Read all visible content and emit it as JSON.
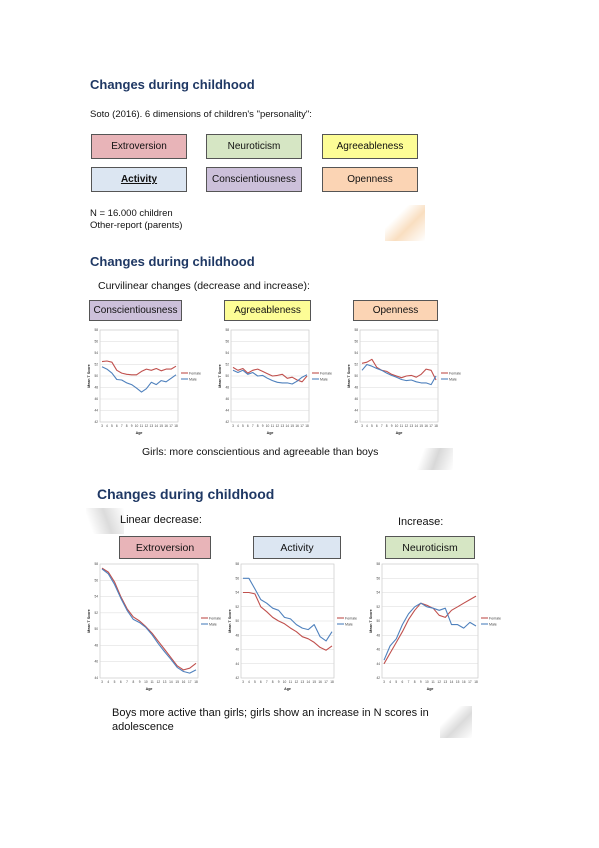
{
  "slide1": {
    "title": "Changes during childhood",
    "intro": "Soto (2016).  6 dimensions of children's \"personality\":",
    "dimensions": [
      {
        "label": "Extroversion",
        "color": "#e8b4b8"
      },
      {
        "label": "Neuroticism",
        "color": "#d6e6c4"
      },
      {
        "label": "Agreeableness",
        "color": "#fdfd96"
      },
      {
        "label": "Activity",
        "color": "#dce6f2"
      },
      {
        "label": "Conscientiousness",
        "color": "#ccc0da"
      },
      {
        "label": "Openness",
        "color": "#fbd4b4"
      }
    ],
    "note1": "N = 16.000 children",
    "note2": "Other-report (parents)"
  },
  "slide2": {
    "title": "Changes during childhood",
    "subtitle": "Curvilinear changes (decrease and increase):",
    "footer": "Girls: more conscientious and agreeable than boys"
  },
  "slide3": {
    "title": "Changes during childhood",
    "left_label": "Linear decrease:",
    "right_label": "Increase:",
    "footer1": "Boys more active than girls; girls show an increase in N scores in",
    "footer2": "adolescence"
  },
  "chart_data": [
    {
      "type": "line",
      "title": "Conscientiousness",
      "xlabel": "Age",
      "ylabel": "Mean T Score",
      "x": [
        3,
        4,
        5,
        6,
        7,
        8,
        9,
        10,
        11,
        12,
        13,
        14,
        15,
        16,
        17,
        18
      ],
      "yticks": [
        42,
        44,
        46,
        48,
        50,
        52,
        54,
        56,
        58
      ],
      "ylim": [
        42,
        58
      ],
      "series": [
        {
          "name": "Female",
          "color": "#c0504d",
          "values": [
            52.5,
            52.6,
            52.4,
            51.0,
            50.5,
            50.3,
            50.2,
            50.2,
            50.8,
            51.2,
            51.0,
            51.3,
            50.9,
            51.2,
            51.2,
            51.7
          ]
        },
        {
          "name": "Male",
          "color": "#4f81bd",
          "values": [
            51.6,
            51.2,
            50.5,
            49.4,
            49.3,
            48.8,
            48.5,
            47.9,
            47.2,
            47.8,
            48.9,
            48.5,
            49.2,
            49.0,
            49.6,
            50.2
          ]
        }
      ]
    },
    {
      "type": "line",
      "title": "Agreeableness",
      "xlabel": "Age",
      "ylabel": "Mean T Score",
      "x": [
        3,
        4,
        5,
        6,
        7,
        8,
        9,
        10,
        11,
        12,
        13,
        14,
        15,
        16,
        17,
        18
      ],
      "yticks": [
        42,
        44,
        46,
        48,
        50,
        52,
        54,
        56,
        58
      ],
      "ylim": [
        42,
        58
      ],
      "series": [
        {
          "name": "Female",
          "color": "#c0504d",
          "values": [
            51.5,
            51.0,
            51.3,
            50.5,
            51.0,
            51.2,
            50.8,
            50.4,
            50.0,
            50.1,
            50.3,
            49.6,
            49.8,
            49.3,
            49.0,
            50.0
          ]
        },
        {
          "name": "Male",
          "color": "#4f81bd",
          "values": [
            51.0,
            50.6,
            51.0,
            50.3,
            50.6,
            50.0,
            50.1,
            49.6,
            49.2,
            48.9,
            48.8,
            48.8,
            48.6,
            49.1,
            49.8,
            50.2
          ]
        }
      ]
    },
    {
      "type": "line",
      "title": "Openness",
      "xlabel": "Age",
      "ylabel": "Mean T Score",
      "x": [
        3,
        4,
        5,
        6,
        7,
        8,
        9,
        10,
        11,
        12,
        13,
        14,
        15,
        16,
        17,
        18
      ],
      "yticks": [
        42,
        44,
        46,
        48,
        50,
        52,
        54,
        56,
        58
      ],
      "ylim": [
        42,
        58
      ],
      "series": [
        {
          "name": "Female",
          "color": "#c0504d",
          "values": [
            52.2,
            52.4,
            52.9,
            51.5,
            51.0,
            50.8,
            50.3,
            50.0,
            49.7,
            50.0,
            50.1,
            49.8,
            50.3,
            51.2,
            51.0,
            49.3
          ]
        },
        {
          "name": "Male",
          "color": "#4f81bd",
          "values": [
            51.0,
            52.0,
            51.7,
            51.3,
            51.0,
            50.5,
            50.1,
            49.8,
            49.4,
            49.2,
            49.3,
            49.0,
            48.8,
            48.8,
            48.5,
            50.0
          ]
        }
      ]
    },
    {
      "type": "line",
      "title": "Extroversion",
      "xlabel": "Age",
      "ylabel": "Mean T Score",
      "x": [
        3,
        4,
        5,
        6,
        7,
        8,
        9,
        10,
        11,
        12,
        13,
        14,
        15,
        16,
        17,
        18
      ],
      "yticks": [
        44,
        46,
        48,
        50,
        52,
        54,
        56,
        58
      ],
      "ylim": [
        44,
        58
      ],
      "series": [
        {
          "name": "Female",
          "color": "#c0504d",
          "values": [
            57.5,
            57.0,
            55.8,
            54.0,
            52.5,
            51.5,
            51.0,
            50.3,
            49.5,
            48.5,
            47.5,
            46.5,
            45.5,
            45.0,
            45.2,
            45.8
          ]
        },
        {
          "name": "Male",
          "color": "#4f81bd",
          "values": [
            57.4,
            56.8,
            55.5,
            53.8,
            52.3,
            51.2,
            50.8,
            50.2,
            49.3,
            48.2,
            47.2,
            46.3,
            45.3,
            44.8,
            44.6,
            45.0
          ]
        }
      ]
    },
    {
      "type": "line",
      "title": "Activity",
      "xlabel": "Age",
      "ylabel": "Mean T Score",
      "x": [
        3,
        4,
        5,
        6,
        7,
        8,
        9,
        10,
        11,
        12,
        13,
        14,
        15,
        16,
        17,
        18
      ],
      "yticks": [
        42,
        44,
        46,
        48,
        50,
        52,
        54,
        56,
        58
      ],
      "ylim": [
        42,
        58
      ],
      "series": [
        {
          "name": "Female",
          "color": "#c0504d",
          "values": [
            54.0,
            54.0,
            53.8,
            52.0,
            51.3,
            50.5,
            50.0,
            49.6,
            49.0,
            48.5,
            47.8,
            47.5,
            47.0,
            46.3,
            45.9,
            46.5
          ]
        },
        {
          "name": "Male",
          "color": "#4f81bd",
          "values": [
            56.0,
            56.0,
            54.5,
            53.0,
            52.5,
            51.8,
            51.5,
            50.5,
            50.3,
            49.5,
            49.0,
            48.8,
            49.5,
            47.8,
            47.2,
            48.5
          ]
        }
      ]
    },
    {
      "type": "line",
      "title": "Neuroticism",
      "xlabel": "Age",
      "ylabel": "Mean T Score",
      "x": [
        3,
        4,
        5,
        6,
        7,
        8,
        9,
        10,
        11,
        12,
        13,
        14,
        15,
        16,
        17,
        18
      ],
      "yticks": [
        42,
        44,
        46,
        48,
        50,
        52,
        54,
        56,
        58
      ],
      "ylim": [
        42,
        58
      ],
      "series": [
        {
          "name": "Female",
          "color": "#c0504d",
          "values": [
            44.0,
            45.5,
            47.0,
            48.5,
            50.2,
            51.5,
            52.5,
            52.2,
            51.8,
            50.8,
            50.5,
            51.5,
            52.0,
            52.5,
            53.0,
            53.5
          ]
        },
        {
          "name": "Male",
          "color": "#4f81bd",
          "values": [
            44.5,
            46.5,
            47.5,
            49.5,
            51.0,
            52.0,
            52.5,
            52.0,
            51.8,
            51.5,
            51.8,
            49.5,
            49.5,
            49.0,
            49.8,
            49.3
          ]
        }
      ]
    }
  ]
}
